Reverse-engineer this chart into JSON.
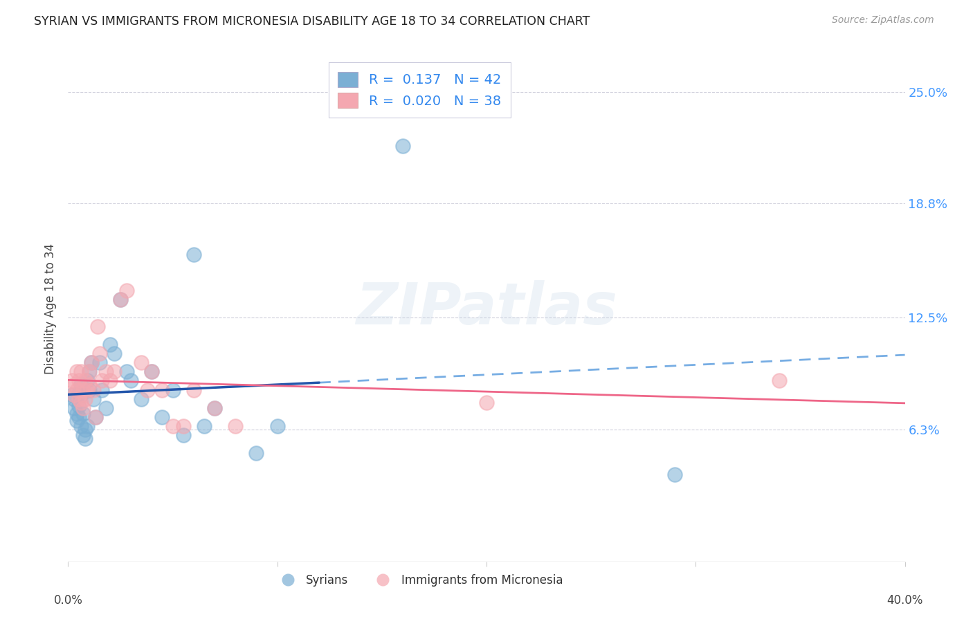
{
  "title": "SYRIAN VS IMMIGRANTS FROM MICRONESIA DISABILITY AGE 18 TO 34 CORRELATION CHART",
  "source": "Source: ZipAtlas.com",
  "ylabel": "Disability Age 18 to 34",
  "ytick_labels": [
    "25.0%",
    "18.8%",
    "12.5%",
    "6.3%"
  ],
  "ytick_values": [
    0.25,
    0.188,
    0.125,
    0.063
  ],
  "xlim": [
    0.0,
    0.4
  ],
  "ylim": [
    -0.01,
    0.27
  ],
  "legend_blue_R": "0.137",
  "legend_blue_N": "42",
  "legend_pink_R": "0.020",
  "legend_pink_N": "38",
  "blue_color": "#7BAFD4",
  "pink_color": "#F4A7B0",
  "blue_line_color": "#2255AA",
  "pink_line_color": "#EE6688",
  "blue_dashed_color": "#5599DD",
  "syrians_x": [
    0.002,
    0.003,
    0.003,
    0.004,
    0.004,
    0.005,
    0.005,
    0.005,
    0.006,
    0.006,
    0.006,
    0.007,
    0.007,
    0.008,
    0.008,
    0.009,
    0.009,
    0.01,
    0.01,
    0.011,
    0.012,
    0.013,
    0.015,
    0.016,
    0.018,
    0.02,
    0.022,
    0.025,
    0.028,
    0.03,
    0.035,
    0.04,
    0.045,
    0.05,
    0.055,
    0.06,
    0.065,
    0.07,
    0.09,
    0.1,
    0.16,
    0.29
  ],
  "syrians_y": [
    0.082,
    0.08,
    0.075,
    0.072,
    0.068,
    0.083,
    0.076,
    0.07,
    0.088,
    0.082,
    0.065,
    0.072,
    0.06,
    0.063,
    0.058,
    0.09,
    0.065,
    0.085,
    0.095,
    0.1,
    0.08,
    0.07,
    0.1,
    0.085,
    0.075,
    0.11,
    0.105,
    0.135,
    0.095,
    0.09,
    0.08,
    0.095,
    0.07,
    0.085,
    0.06,
    0.16,
    0.065,
    0.075,
    0.05,
    0.065,
    0.22,
    0.038
  ],
  "micronesia_x": [
    0.002,
    0.003,
    0.003,
    0.004,
    0.004,
    0.005,
    0.005,
    0.006,
    0.006,
    0.007,
    0.007,
    0.008,
    0.008,
    0.009,
    0.01,
    0.01,
    0.011,
    0.012,
    0.013,
    0.014,
    0.015,
    0.016,
    0.018,
    0.02,
    0.022,
    0.025,
    0.028,
    0.035,
    0.038,
    0.04,
    0.045,
    0.05,
    0.055,
    0.06,
    0.07,
    0.08,
    0.2,
    0.34
  ],
  "micronesia_y": [
    0.09,
    0.088,
    0.082,
    0.095,
    0.085,
    0.09,
    0.08,
    0.095,
    0.078,
    0.085,
    0.075,
    0.09,
    0.08,
    0.085,
    0.095,
    0.088,
    0.1,
    0.085,
    0.07,
    0.12,
    0.105,
    0.09,
    0.095,
    0.09,
    0.095,
    0.135,
    0.14,
    0.1,
    0.085,
    0.095,
    0.085,
    0.065,
    0.065,
    0.085,
    0.075,
    0.065,
    0.078,
    0.09
  ]
}
